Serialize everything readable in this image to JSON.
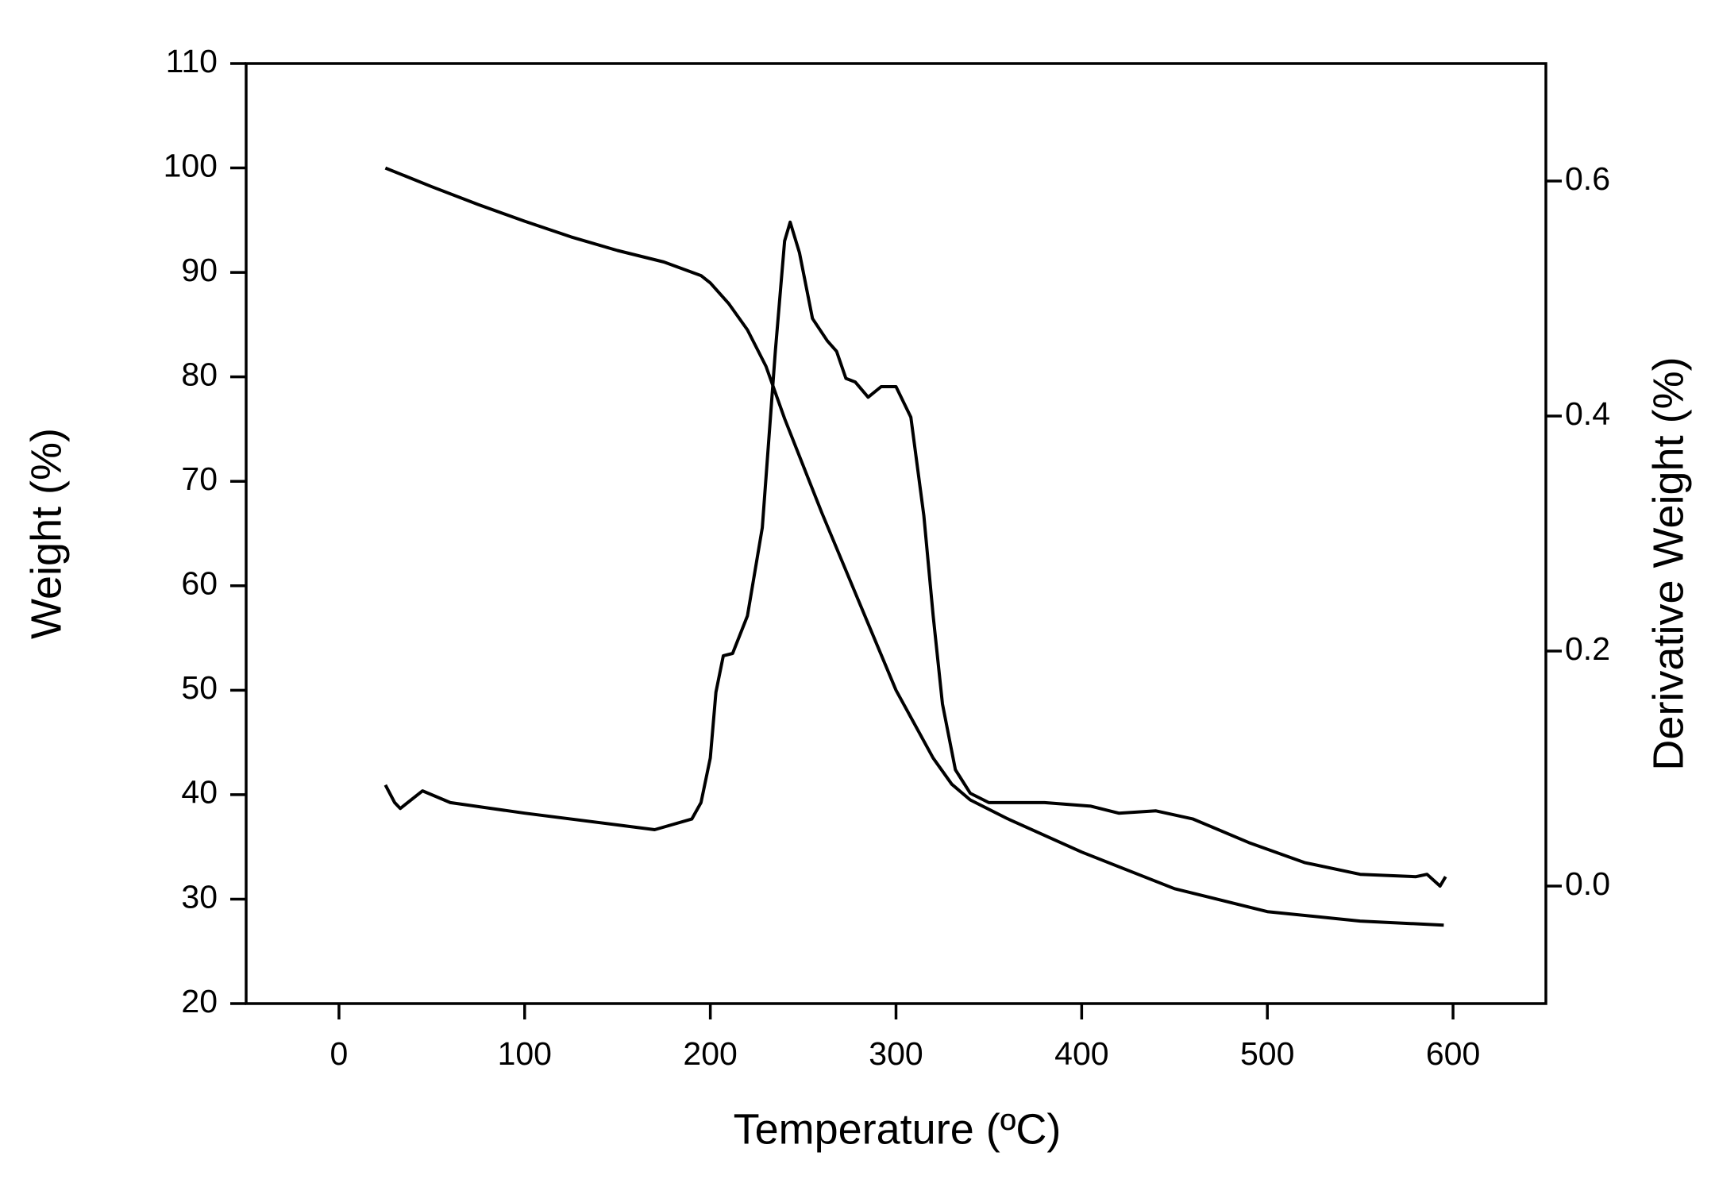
{
  "chart_data": {
    "type": "line",
    "xlabel": "Temperature (ºC)",
    "ylabel": "Weight (%)",
    "y2label": "Derivative Weight (%)",
    "xlim": [
      -50,
      650
    ],
    "xticks": [
      0,
      100,
      200,
      300,
      400,
      500,
      600
    ],
    "ylim": [
      20,
      110
    ],
    "yticks": [
      20,
      30,
      40,
      50,
      60,
      70,
      80,
      90,
      100,
      110
    ],
    "y2lim": [
      -0.1,
      0.7
    ],
    "y2ticks": [
      {
        "value": 0,
        "label": "0.0"
      },
      0.2,
      0.4,
      0.6
    ],
    "series": [
      {
        "color": "#000000",
        "axis": "y",
        "x": [
          25,
          50,
          75,
          100,
          125,
          150,
          175,
          195,
          200,
          210,
          220,
          230,
          240,
          250,
          260,
          280,
          300,
          320,
          330,
          340,
          360,
          400,
          450,
          500,
          550,
          595
        ],
        "values": [
          100,
          98.2,
          96.5,
          94.9,
          93.4,
          92.1,
          91,
          89.7,
          89,
          87,
          84.5,
          81,
          76,
          71.5,
          67,
          58.5,
          50,
          43.5,
          41,
          39.5,
          37.7,
          34.5,
          31,
          28.8,
          27.9,
          27.5
        ]
      },
      {
        "color": "#000000",
        "axis": "y2",
        "x": [
          25,
          30,
          33,
          45,
          60,
          100,
          150,
          170,
          190,
          195,
          200,
          203,
          207,
          212,
          220,
          228,
          235,
          240,
          243,
          248,
          255,
          263,
          268,
          273,
          278,
          285,
          292,
          300,
          308,
          315,
          320,
          325,
          332,
          340,
          350,
          380,
          405,
          420,
          440,
          460,
          490,
          520,
          550,
          580,
          586,
          593,
          596
        ],
        "values": [
          0.086,
          0.071,
          0.066,
          0.081,
          0.071,
          0.062,
          0.052,
          0.048,
          0.057,
          0.071,
          0.109,
          0.165,
          0.196,
          0.198,
          0.23,
          0.305,
          0.455,
          0.549,
          0.565,
          0.539,
          0.483,
          0.464,
          0.455,
          0.432,
          0.429,
          0.416,
          0.425,
          0.425,
          0.399,
          0.315,
          0.23,
          0.155,
          0.099,
          0.079,
          0.071,
          0.071,
          0.068,
          0.062,
          0.064,
          0.057,
          0.037,
          0.02,
          0.01,
          0.008,
          0.01,
          0,
          0.008
        ]
      }
    ]
  }
}
